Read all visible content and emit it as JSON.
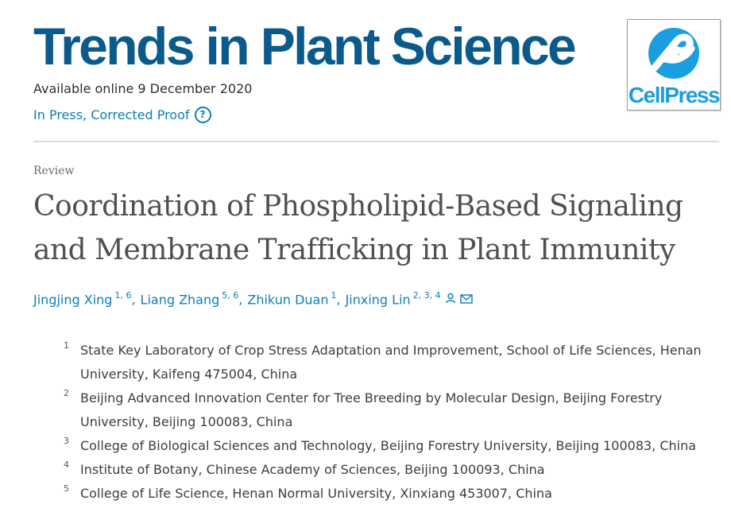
{
  "journal": {
    "title": "Trends in Plant Science",
    "available_online": "Available online 9 December 2020",
    "status": "In Press, Corrected Proof",
    "publisher_logo_text": "CellPress",
    "help_icon": "question-circle-icon"
  },
  "article": {
    "type": "Review",
    "title": "Coordination of Phospholipid-Based Signaling and Membrane Trafficking in Plant Immunity"
  },
  "authors": [
    {
      "name": "Jingjing Xing",
      "sup": "1, 6"
    },
    {
      "name": "Liang Zhang",
      "sup": "5, 6"
    },
    {
      "name": "Zhikun Duan",
      "sup": "1"
    },
    {
      "name": "Jinxing Lin",
      "sup": "2, 3, 4",
      "icons": [
        "person-icon",
        "mail-icon"
      ]
    }
  ],
  "affiliations": [
    {
      "num": "1",
      "text": "State Key Laboratory of Crop Stress Adaptation and Improvement, School of Life Sciences, Henan University, Kaifeng 475004, China"
    },
    {
      "num": "2",
      "text": "Beijing Advanced Innovation Center for Tree Breeding by Molecular Design, Beijing Forestry University, Beijing 100083, China"
    },
    {
      "num": "3",
      "text": "College of Biological Sciences and Technology, Beijing Forestry University, Beijing 100083, China"
    },
    {
      "num": "4",
      "text": "Institute of Botany, Chinese Academy of Sciences, Beijing 100093, China"
    },
    {
      "num": "5",
      "text": "College of Life Science, Henan Normal University, Xinxiang 453007, China"
    }
  ],
  "colors": {
    "journal_blue": "#0a5a8c",
    "link_blue": "#0c7dbb",
    "cellpress_blue": "#1a9ee0"
  }
}
